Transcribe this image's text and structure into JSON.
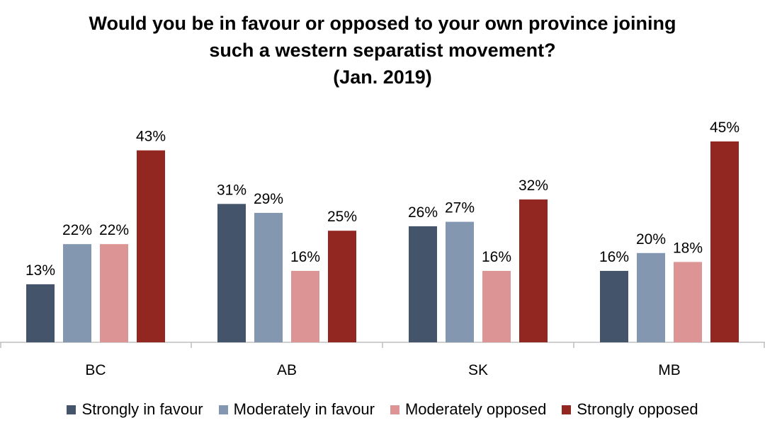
{
  "chart_data": {
    "type": "bar",
    "title_lines": [
      "Would you be in favour or opposed to your own province joining",
      "such a western separatist movement?",
      "(Jan. 2019)"
    ],
    "categories": [
      "BC",
      "AB",
      "SK",
      "MB"
    ],
    "series": [
      {
        "name": "Strongly in favour",
        "color": "#44546a",
        "values": [
          13,
          31,
          26,
          16
        ],
        "labels": [
          "13%",
          "31%",
          "26%",
          "16%"
        ]
      },
      {
        "name": "Moderately in favour",
        "color": "#8497b0",
        "values": [
          22,
          29,
          27,
          20
        ],
        "labels": [
          "22%",
          "29%",
          "27%",
          "20%"
        ]
      },
      {
        "name": "Moderately opposed",
        "color": "#dc9494",
        "values": [
          22,
          16,
          16,
          18
        ],
        "labels": [
          "22%",
          "16%",
          "16%",
          "18%"
        ]
      },
      {
        "name": "Strongly opposed",
        "color": "#922620",
        "values": [
          43,
          25,
          32,
          45
        ],
        "labels": [
          "43%",
          "25%",
          "32%",
          "45%"
        ]
      }
    ],
    "ylim": [
      0,
      45
    ],
    "grid": false,
    "legend_position": "bottom"
  }
}
